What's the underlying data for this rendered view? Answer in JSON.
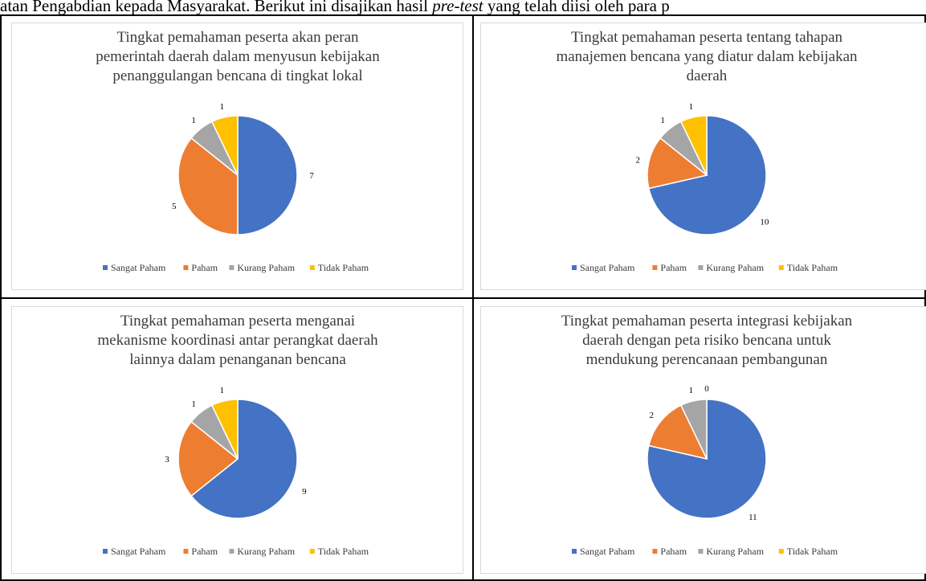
{
  "document": {
    "header_text_parts": [
      {
        "text": "atan Pengabdian kepada Masyarakat. Berikut ini disajikan hasil ",
        "italic": false
      },
      {
        "text": "pre-test",
        "italic": true
      },
      {
        "text": " yang telah diisi oleh para p",
        "italic": false
      }
    ]
  },
  "colors": {
    "Sangat Paham": "#4472C4",
    "Paham": "#ED7D31",
    "Kurang Paham": "#A5A5A5",
    "Tidak Paham": "#FFC000"
  },
  "chart_data": [
    {
      "type": "pie",
      "title_lines": [
        "Tingkat pemahaman peserta akan peran",
        "pemerintah daerah dalam menyusun kebijakan",
        "penanggulangan bencana di tingkat lokal"
      ],
      "labels": [
        "Sangat Paham",
        "Paham",
        "Kurang Paham",
        "Tidak Paham"
      ],
      "values": [
        7,
        5,
        1,
        1
      ],
      "data_labels": true,
      "legend": "bottom"
    },
    {
      "type": "pie",
      "title_lines": [
        "Tingkat pemahaman peserta tentang tahapan",
        "manajemen bencana yang diatur dalam kebijakan",
        "daerah"
      ],
      "labels": [
        "Sangat Paham",
        "Paham",
        "Kurang Paham",
        "Tidak Paham"
      ],
      "values": [
        10,
        2,
        1,
        1
      ],
      "data_labels": true,
      "legend": "bottom"
    },
    {
      "type": "pie",
      "title_lines": [
        "Tingkat pemahaman peserta menganai",
        "mekanisme koordinasi antar perangkat daerah",
        "lainnya dalam penanganan bencana"
      ],
      "labels": [
        "Sangat Paham",
        "Paham",
        "Kurang Paham",
        "Tidak Paham"
      ],
      "values": [
        9,
        3,
        1,
        1
      ],
      "data_labels": true,
      "legend": "bottom"
    },
    {
      "type": "pie",
      "title_lines": [
        "Tingkat pemahaman peserta integrasi kebijakan",
        "daerah dengan peta risiko bencana untuk",
        "mendukung perencanaan pembangunan"
      ],
      "labels": [
        "Sangat Paham",
        "Paham",
        "Kurang Paham",
        "Tidak Paham"
      ],
      "values": [
        11,
        2,
        1,
        0
      ],
      "data_labels": true,
      "legend": "bottom"
    }
  ]
}
